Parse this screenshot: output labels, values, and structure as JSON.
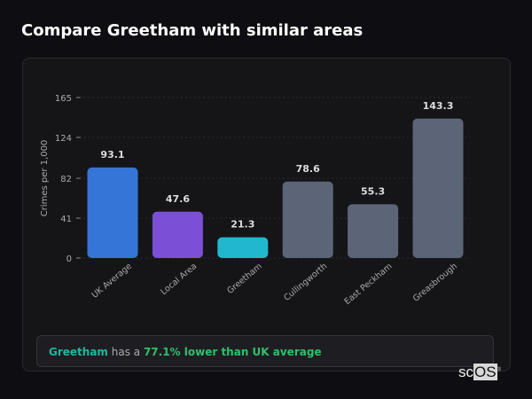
{
  "title": "Compare Greetham with similar areas",
  "chart_data": {
    "type": "bar",
    "title": "Compare Greetham with similar areas",
    "ylabel": "Crimes per 1,000",
    "xlabel": "",
    "ylim": [
      0,
      165
    ],
    "yticks": [
      0,
      41,
      82,
      124,
      165
    ],
    "grid": true,
    "categories": [
      "UK Average",
      "Local Area",
      "Greetham",
      "Cullingworth",
      "East Peckham",
      "Greasbrough"
    ],
    "values": [
      93.1,
      47.6,
      21.3,
      78.6,
      55.3,
      143.3
    ],
    "value_labels": [
      "93.1",
      "47.6",
      "21.3",
      "78.6",
      "55.3",
      "143.3"
    ],
    "colors": [
      "#3575d8",
      "#7b4fd6",
      "#21b8cf",
      "#5b6577",
      "#5b6577",
      "#5b6577"
    ]
  },
  "insight": {
    "area": "Greetham",
    "middle": " has a ",
    "highlight": "77.1% lower than UK average"
  },
  "logo": {
    "prefix": "sc",
    "suffix": "OS",
    "mark": "®"
  }
}
